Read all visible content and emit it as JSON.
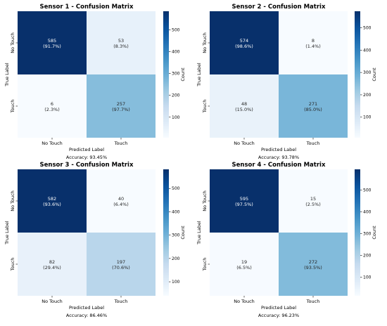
{
  "chart_data": [
    {
      "type": "heatmap",
      "title": "Sensor 1 - Confusion Matrix",
      "xlabel": "Predicted Label",
      "ylabel": "True Label",
      "x_categories": [
        "No Touch",
        "Touch"
      ],
      "y_categories": [
        "No Touch",
        "Touch"
      ],
      "values": [
        [
          585,
          53
        ],
        [
          6,
          257
        ]
      ],
      "percentages": [
        [
          "(91.7%)",
          "(8.3%)"
        ],
        [
          "(2.3%)",
          "(97.7%)"
        ]
      ],
      "accuracy": "Accuracy: 93.45%",
      "colorbar": {
        "label": "Count",
        "ticks": [
          100,
          200,
          300,
          400,
          500
        ],
        "range": [
          6,
          585
        ]
      }
    },
    {
      "type": "heatmap",
      "title": "Sensor 2 - Confusion Matrix",
      "xlabel": "Predicted Label",
      "ylabel": "True Label",
      "x_categories": [
        "No Touch",
        "Touch"
      ],
      "y_categories": [
        "No Touch",
        "Touch"
      ],
      "values": [
        [
          574,
          8
        ],
        [
          48,
          271
        ]
      ],
      "percentages": [
        [
          "(98.6%)",
          "(1.4%)"
        ],
        [
          "(15.0%)",
          "(85.0%)"
        ]
      ],
      "accuracy": "Accuracy: 93.78%",
      "colorbar": {
        "label": "Count",
        "ticks": [
          100,
          200,
          300,
          400,
          500
        ],
        "range": [
          8,
          574
        ]
      }
    },
    {
      "type": "heatmap",
      "title": "Sensor 3 - Confusion Matrix",
      "xlabel": "Predicted Label",
      "ylabel": "True Label",
      "x_categories": [
        "No Touch",
        "Touch"
      ],
      "y_categories": [
        "No Touch",
        "Touch"
      ],
      "values": [
        [
          582,
          40
        ],
        [
          82,
          197
        ]
      ],
      "percentages": [
        [
          "(93.6%)",
          "(6.4%)"
        ],
        [
          "(29.4%)",
          "(70.6%)"
        ]
      ],
      "accuracy": "Accuracy: 86.46%",
      "colorbar": {
        "label": "Count",
        "ticks": [
          100,
          200,
          300,
          400,
          500
        ],
        "range": [
          40,
          582
        ]
      }
    },
    {
      "type": "heatmap",
      "title": "Sensor 4 - Confusion Matrix",
      "xlabel": "Predicted Label",
      "ylabel": "True Label",
      "x_categories": [
        "No Touch",
        "Touch"
      ],
      "y_categories": [
        "No Touch",
        "Touch"
      ],
      "values": [
        [
          595,
          15
        ],
        [
          19,
          272
        ]
      ],
      "percentages": [
        [
          "(97.5%)",
          "(2.5%)"
        ],
        [
          "(6.5%)",
          "(93.5%)"
        ]
      ],
      "accuracy": "Accuracy: 96.23%",
      "colorbar": {
        "label": "Count",
        "ticks": [
          100,
          200,
          300,
          400,
          500
        ],
        "range": [
          15,
          595
        ]
      }
    }
  ]
}
